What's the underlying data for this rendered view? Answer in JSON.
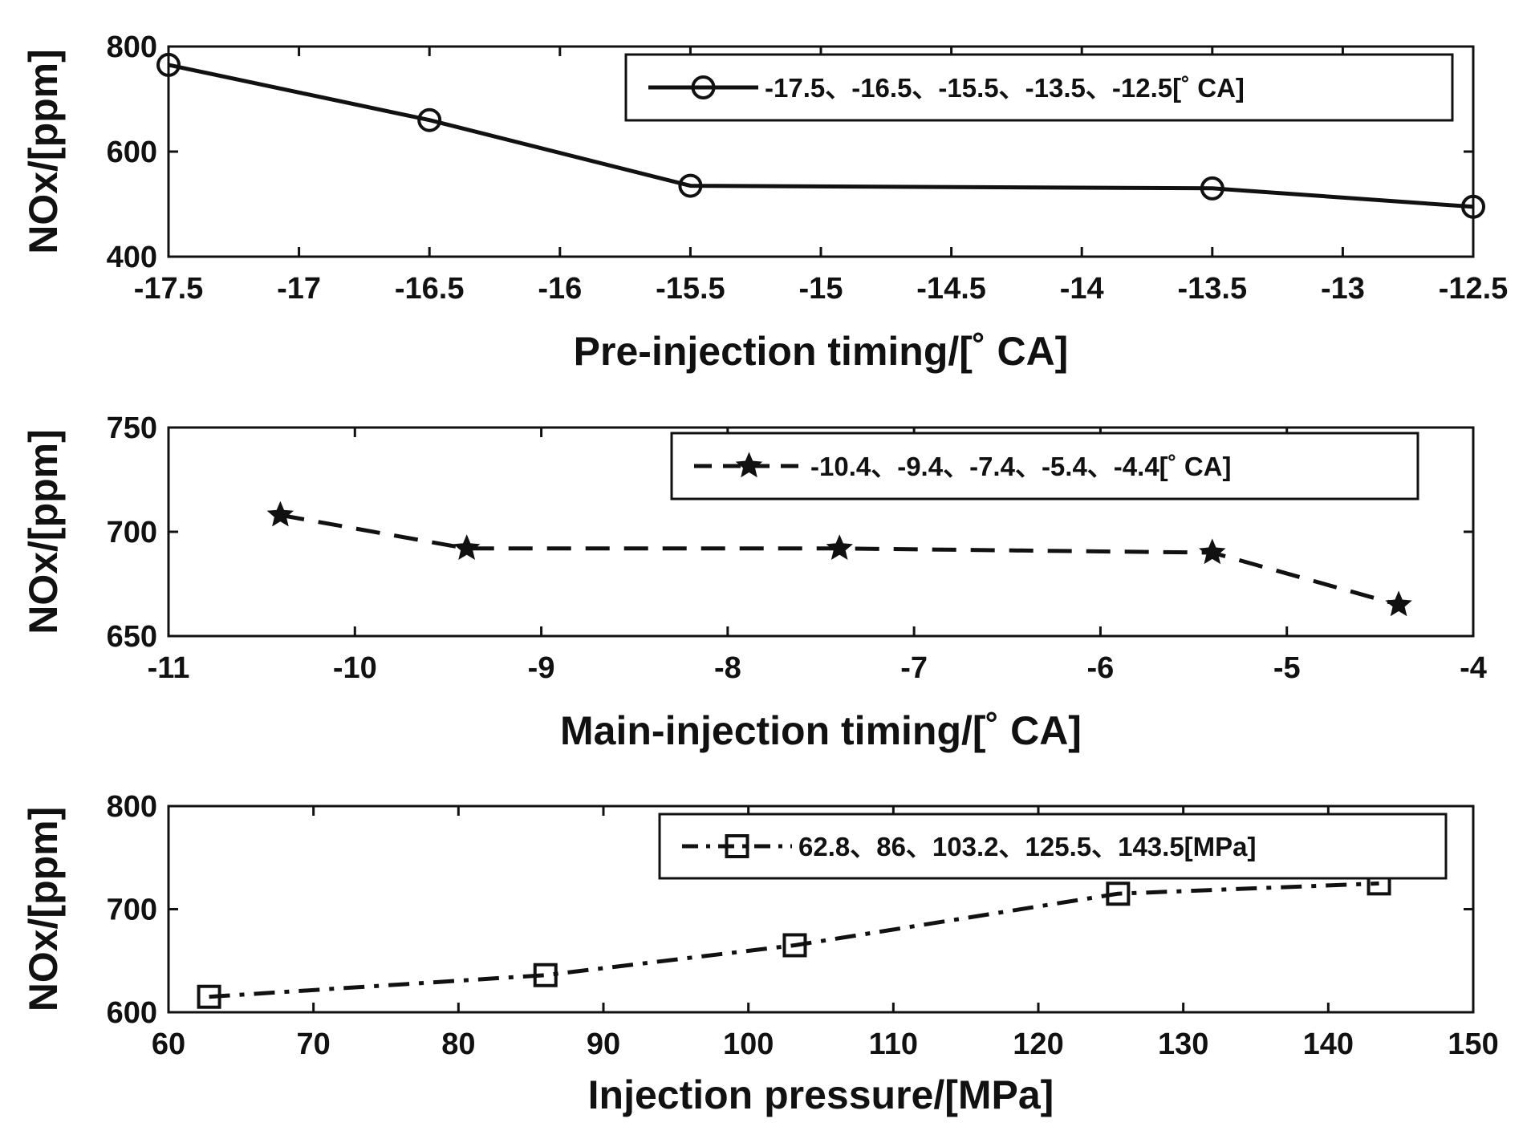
{
  "colors": {
    "line": "#111111",
    "background": "#ffffff",
    "axes": "#111111"
  },
  "chart_data": [
    {
      "type": "line",
      "title": "",
      "xlabel": "Pre-injection timing/[˚ CA]",
      "ylabel": "NOx/[ppm]",
      "xlim": [
        -17.5,
        -12.5
      ],
      "ylim": [
        400,
        800
      ],
      "xticks": [
        -17.5,
        -17,
        -16.5,
        -16,
        -15.5,
        -15,
        -14.5,
        -14,
        -13.5,
        -13,
        -12.5
      ],
      "xtick_labels": [
        "-17.5",
        "-17",
        "-16.5",
        "-16",
        "-15.5",
        "-15",
        "-14.5",
        "-14",
        "-13.5",
        "-13",
        "-12.5"
      ],
      "yticks": [
        400,
        600,
        800
      ],
      "ytick_labels": [
        "400",
        "600",
        "800"
      ],
      "grid": false,
      "legend_position": "top-right",
      "series": [
        {
          "name": "-17.5、-16.5、-15.5、-13.5、-12.5[˚ CA]",
          "line_style": "solid",
          "marker": "circle",
          "x": [
            -17.5,
            -16.5,
            -15.5,
            -13.5,
            -12.5
          ],
          "values": [
            765,
            660,
            535,
            530,
            495
          ]
        }
      ]
    },
    {
      "type": "line",
      "title": "",
      "xlabel": "Main-injection timing/[˚ CA]",
      "ylabel": "NOx/[ppm]",
      "xlim": [
        -11,
        -4
      ],
      "ylim": [
        650,
        750
      ],
      "xticks": [
        -11,
        -10,
        -9,
        -8,
        -7,
        -6,
        -5,
        -4
      ],
      "xtick_labels": [
        "-11",
        "-10",
        "-9",
        "-8",
        "-7",
        "-6",
        "-5",
        "-4"
      ],
      "yticks": [
        650,
        700,
        750
      ],
      "ytick_labels": [
        "650",
        "700",
        "750"
      ],
      "grid": false,
      "legend_position": "top-right",
      "series": [
        {
          "name": "-10.4、-9.4、-7.4、-5.4、-4.4[˚ CA]",
          "line_style": "dashed",
          "marker": "star",
          "x": [
            -10.4,
            -9.4,
            -7.4,
            -5.4,
            -4.4
          ],
          "values": [
            708,
            692,
            692,
            690,
            665
          ]
        }
      ]
    },
    {
      "type": "line",
      "title": "",
      "xlabel": "Injection pressure/[MPa]",
      "ylabel": "NOx/[ppm]",
      "xlim": [
        60,
        150
      ],
      "ylim": [
        600,
        800
      ],
      "xticks": [
        60,
        70,
        80,
        90,
        100,
        110,
        120,
        130,
        140,
        150
      ],
      "xtick_labels": [
        "60",
        "70",
        "80",
        "90",
        "100",
        "110",
        "120",
        "130",
        "140",
        "150"
      ],
      "yticks": [
        600,
        700,
        800
      ],
      "ytick_labels": [
        "600",
        "700",
        "800"
      ],
      "grid": false,
      "legend_position": "top-right",
      "series": [
        {
          "name": "62.8、86、103.2、125.5、143.5[MPa]",
          "line_style": "dashdot",
          "marker": "square",
          "x": [
            62.8,
            86,
            103.2,
            125.5,
            143.5
          ],
          "values": [
            615,
            636,
            665,
            715,
            725
          ]
        }
      ]
    }
  ]
}
